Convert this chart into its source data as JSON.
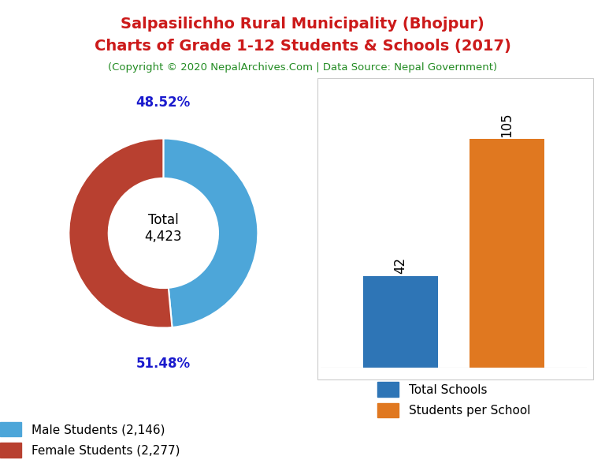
{
  "title_line1": "Salpasilichho Rural Municipality (Bhojpur)",
  "title_line2": "Charts of Grade 1-12 Students & Schools (2017)",
  "subtitle": "(Copyright © 2020 NepalArchives.Com | Data Source: Nepal Government)",
  "title_color": "#cc1a1a",
  "subtitle_color": "#228B22",
  "pie_values": [
    2146,
    2277
  ],
  "pie_colors": [
    "#4da6d9",
    "#b84030"
  ],
  "pie_labels": [
    "48.52%",
    "51.48%"
  ],
  "pie_center_text": "Total\n4,423",
  "pie_legend_labels": [
    "Male Students (2,146)",
    "Female Students (2,277)"
  ],
  "bar_values": [
    42,
    105
  ],
  "bar_colors": [
    "#2e75b6",
    "#e07820"
  ],
  "bar_legend_labels": [
    "Total Schools",
    "Students per School"
  ],
  "bar_label_color": "#000000",
  "percent_label_color": "#1a1acd",
  "background_color": "#ffffff"
}
